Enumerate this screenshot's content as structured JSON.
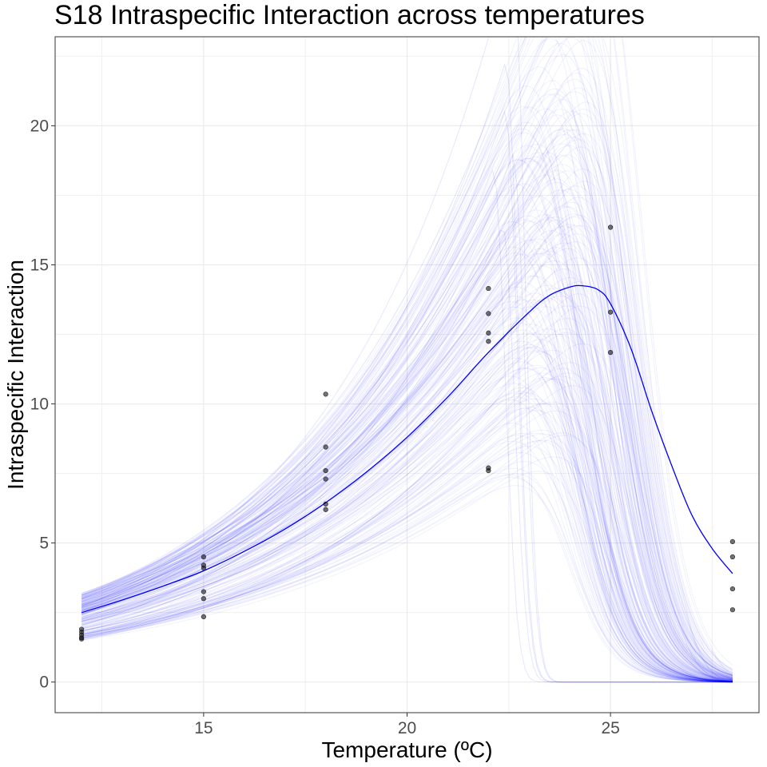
{
  "chart_data": {
    "type": "scatter",
    "title": "S18 Intraspecific Interaction across temperatures",
    "xlabel": "Temperature (ºC)",
    "ylabel": "Intraspecific Interaction",
    "xlim": [
      11.35,
      28.65
    ],
    "ylim": [
      -1.1,
      23.2
    ],
    "x_ticks": [
      15,
      20,
      25
    ],
    "x_tick_labels": [
      "15",
      "20",
      "25"
    ],
    "y_ticks": [
      0,
      5,
      10,
      15,
      20
    ],
    "y_tick_labels": [
      "0",
      "5",
      "10",
      "15",
      "20"
    ],
    "grid": true,
    "legend": "none",
    "points": [
      {
        "x": 12,
        "y": 1.9
      },
      {
        "x": 12,
        "y": 1.8
      },
      {
        "x": 12,
        "y": 1.7
      },
      {
        "x": 12,
        "y": 1.6
      },
      {
        "x": 12,
        "y": 1.55
      },
      {
        "x": 15,
        "y": 4.5
      },
      {
        "x": 15,
        "y": 4.2
      },
      {
        "x": 15,
        "y": 4.1
      },
      {
        "x": 15,
        "y": 3.25
      },
      {
        "x": 15,
        "y": 3.0
      },
      {
        "x": 15,
        "y": 2.35
      },
      {
        "x": 18,
        "y": 10.35
      },
      {
        "x": 18,
        "y": 8.45
      },
      {
        "x": 18,
        "y": 7.6
      },
      {
        "x": 18,
        "y": 7.3
      },
      {
        "x": 18,
        "y": 6.4
      },
      {
        "x": 18,
        "y": 6.2
      },
      {
        "x": 22,
        "y": 14.15
      },
      {
        "x": 22,
        "y": 13.25
      },
      {
        "x": 22,
        "y": 12.55
      },
      {
        "x": 22,
        "y": 12.25
      },
      {
        "x": 22,
        "y": 7.7
      },
      {
        "x": 22,
        "y": 7.6
      },
      {
        "x": 25,
        "y": 16.35
      },
      {
        "x": 25,
        "y": 13.3
      },
      {
        "x": 25,
        "y": 11.85
      },
      {
        "x": 28,
        "y": 5.05
      },
      {
        "x": 28,
        "y": 4.5
      },
      {
        "x": 28,
        "y": 3.35
      },
      {
        "x": 28,
        "y": 2.6
      }
    ],
    "fit_line": {
      "color": "#0000ff",
      "x": [
        12,
        13,
        14,
        15,
        16,
        17,
        18,
        19,
        20,
        21,
        22,
        23,
        23.5,
        24,
        24.3,
        24.7,
        25,
        25.5,
        26,
        26.5,
        27,
        27.5,
        28
      ],
      "y": [
        2.5,
        2.95,
        3.45,
        4.0,
        4.7,
        5.5,
        6.45,
        7.55,
        8.8,
        10.25,
        11.85,
        13.3,
        13.9,
        14.2,
        14.25,
        14.1,
        13.6,
        12.0,
        9.8,
        7.8,
        6.0,
        4.8,
        3.9
      ]
    },
    "posterior_samples": {
      "color": "#0000ff"
    }
  }
}
